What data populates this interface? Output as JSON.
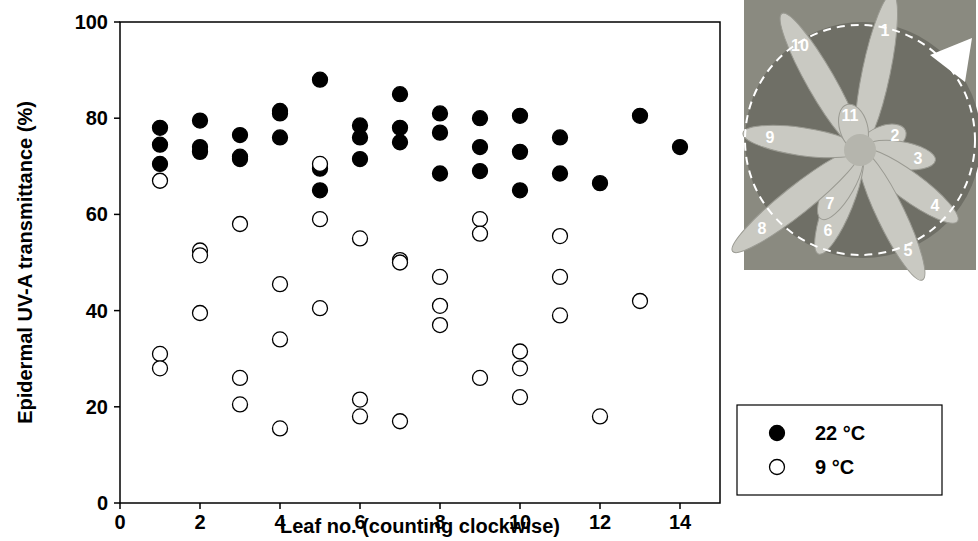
{
  "chart_data": {
    "type": "scatter",
    "x_label": "Leaf no. (counting clockwise)",
    "y_label": "Epidermal UV-A transmittance (%)",
    "xlim": [
      0,
      15
    ],
    "xticks": [
      0,
      2,
      4,
      6,
      8,
      10,
      12,
      14
    ],
    "ylim": [
      0,
      100
    ],
    "yticks": [
      0,
      20,
      40,
      60,
      80,
      100
    ],
    "legend": "right",
    "annotations": [
      "1",
      "2",
      "3",
      "4",
      "5",
      "6",
      "7",
      "8",
      "9",
      "10",
      "11"
    ],
    "series": [
      {
        "name": "22 °C",
        "color": "#000000",
        "marker": "circle",
        "x": [
          1,
          1,
          1,
          2,
          2,
          2,
          3,
          3,
          3,
          4,
          4,
          4,
          5,
          5,
          5,
          6,
          6,
          6,
          7,
          7,
          7,
          8,
          8,
          8,
          9,
          9,
          9,
          10,
          10,
          10,
          11,
          11,
          12,
          13,
          14
        ],
        "values": [
          78,
          74.5,
          70.5,
          79.5,
          74,
          73,
          76.5,
          72,
          71.5,
          81,
          81.5,
          76,
          88,
          69.5,
          65,
          78.5,
          76,
          71.5,
          85,
          78,
          75,
          81,
          77,
          68.5,
          80,
          74,
          69,
          80.5,
          73,
          65,
          76,
          68.5,
          66.5,
          80.5,
          74
        ]
      },
      {
        "name": "9 °C",
        "color": "#000000",
        "marker": "open_circle",
        "x": [
          1,
          1,
          1,
          2,
          2,
          2,
          3,
          3,
          3,
          4,
          4,
          4,
          5,
          5,
          5,
          6,
          6,
          6,
          7,
          7,
          7,
          8,
          8,
          8,
          9,
          9,
          9,
          10,
          10,
          10,
          11,
          11,
          11,
          12,
          13
        ],
        "values": [
          67,
          31,
          28,
          52.5,
          51.5,
          39.5,
          58,
          26,
          20.5,
          45.5,
          34,
          15.5,
          70.5,
          59,
          40.5,
          55,
          21.5,
          18,
          50.5,
          50,
          17,
          47,
          41,
          37,
          59,
          56,
          26,
          31.5,
          28,
          22,
          55.5,
          47,
          39,
          18,
          42
        ]
      }
    ]
  }
}
